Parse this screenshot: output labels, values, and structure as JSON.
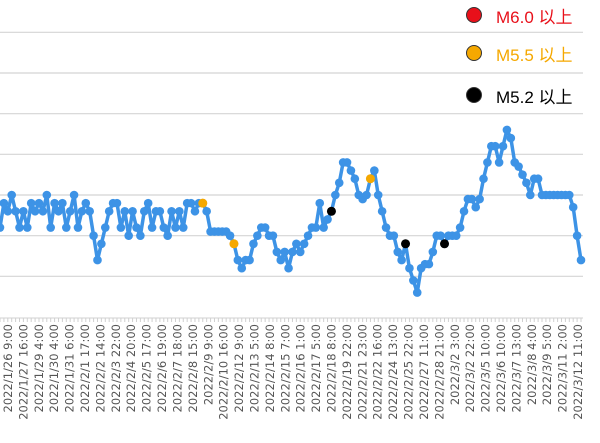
{
  "chart_data": {
    "type": "line",
    "title": "",
    "xlabel": "",
    "ylabel": "",
    "ylim": [
      0,
      7.5
    ],
    "grid": true,
    "gridlines_y": [
      1,
      2,
      3,
      4,
      5,
      6,
      7
    ],
    "legend_placement": "top-right",
    "line_color": "#3d93e6",
    "x_tick_labels": [
      "2022/1/26 9:00",
      "2022/1/27 16:00",
      "2022/1/29 4:00",
      "2022/1/30 4:00",
      "2022/1/31 6:00",
      "2022/2/1 17:00",
      "2022/2/2 14:00",
      "2022/2/3 22:00",
      "2022/2/4 20:00",
      "2022/2/5 17:00",
      "2022/2/6 19:00",
      "2022/2/7 18:00",
      "2022/2/8 15:00",
      "2022/2/9 9:00",
      "2022/2/10 16:00",
      "2022/2/12 9:00",
      "2022/2/13 5:00",
      "2022/2/14 8:00",
      "2022/2/15 7:00",
      "2022/2/16 1:00",
      "2022/2/17 5:00",
      "2022/2/18 8:00",
      "2022/2/19 22:00",
      "2022/2/21 23:00",
      "2022/2/22 16:00",
      "2022/2/24 13:00",
      "2022/2/25 22:00",
      "2022/2/27 11:00",
      "2022/2/28 21:00",
      "2022/3/2 3:00",
      "2022/3/2 22:00",
      "2022/3/5 10:00",
      "2022/3/6 10:00",
      "2022/3/7 13:00",
      "2022/3/8 4:00",
      "2022/3/9 5:00",
      "2022/3/11 2:00",
      "2022/3/12 11:00"
    ],
    "values": [
      2.2,
      2.8,
      2.6,
      3.0,
      2.6,
      2.2,
      2.6,
      2.2,
      2.8,
      2.6,
      2.8,
      2.6,
      3.0,
      2.2,
      2.8,
      2.6,
      2.8,
      2.2,
      2.6,
      3.0,
      2.2,
      2.6,
      2.8,
      2.6,
      2.0,
      1.4,
      1.8,
      2.2,
      2.6,
      2.8,
      2.8,
      2.2,
      2.6,
      2.0,
      2.6,
      2.2,
      2.0,
      2.6,
      2.8,
      2.2,
      2.6,
      2.6,
      2.2,
      2.0,
      2.6,
      2.2,
      2.6,
      2.2,
      2.8,
      2.8,
      2.6,
      2.8,
      2.8,
      2.6,
      2.1,
      2.1,
      2.1,
      2.1,
      2.1,
      2.0,
      1.8,
      1.4,
      1.2,
      1.4,
      1.4,
      1.8,
      2.0,
      2.2,
      2.2,
      2.0,
      2.0,
      1.6,
      1.4,
      1.6,
      1.2,
      1.6,
      1.8,
      1.6,
      1.8,
      2.0,
      2.2,
      2.2,
      2.8,
      2.2,
      2.4,
      2.6,
      3.0,
      3.3,
      3.8,
      3.8,
      3.6,
      3.4,
      3.0,
      2.9,
      3.0,
      3.4,
      3.6,
      3.0,
      2.6,
      2.2,
      2.0,
      2.0,
      1.6,
      1.4,
      1.8,
      1.2,
      0.9,
      0.6,
      1.2,
      1.3,
      1.3,
      1.6,
      2.0,
      2.0,
      1.8,
      2.0,
      2.0,
      2.0,
      2.2,
      2.6,
      2.9,
      2.9,
      2.7,
      2.9,
      3.4,
      3.8,
      4.2,
      4.2,
      3.8,
      4.2,
      4.6,
      4.4,
      3.8,
      3.7,
      3.5,
      3.3,
      3.0,
      3.4,
      3.4,
      3.0,
      3.0,
      3.0,
      3.0,
      3.0,
      3.0,
      3.0,
      3.0,
      2.7,
      2.0,
      1.4
    ],
    "highlighted_points": [
      {
        "index": 52,
        "category": "M5.5 以上"
      },
      {
        "index": 60,
        "category": "M5.5 以上"
      },
      {
        "index": 85,
        "category": "M5.2 以上"
      },
      {
        "index": 95,
        "category": "M5.5 以上"
      },
      {
        "index": 104,
        "category": "M5.2 以上"
      },
      {
        "index": 114,
        "category": "M5.2 以上"
      }
    ],
    "legend": [
      {
        "label": "M6.0 以上",
        "color": "#e8101a"
      },
      {
        "label": "M5.5 以上",
        "color": "#f5a800"
      },
      {
        "label": "M5.2 以上",
        "color": "#000000"
      }
    ]
  }
}
